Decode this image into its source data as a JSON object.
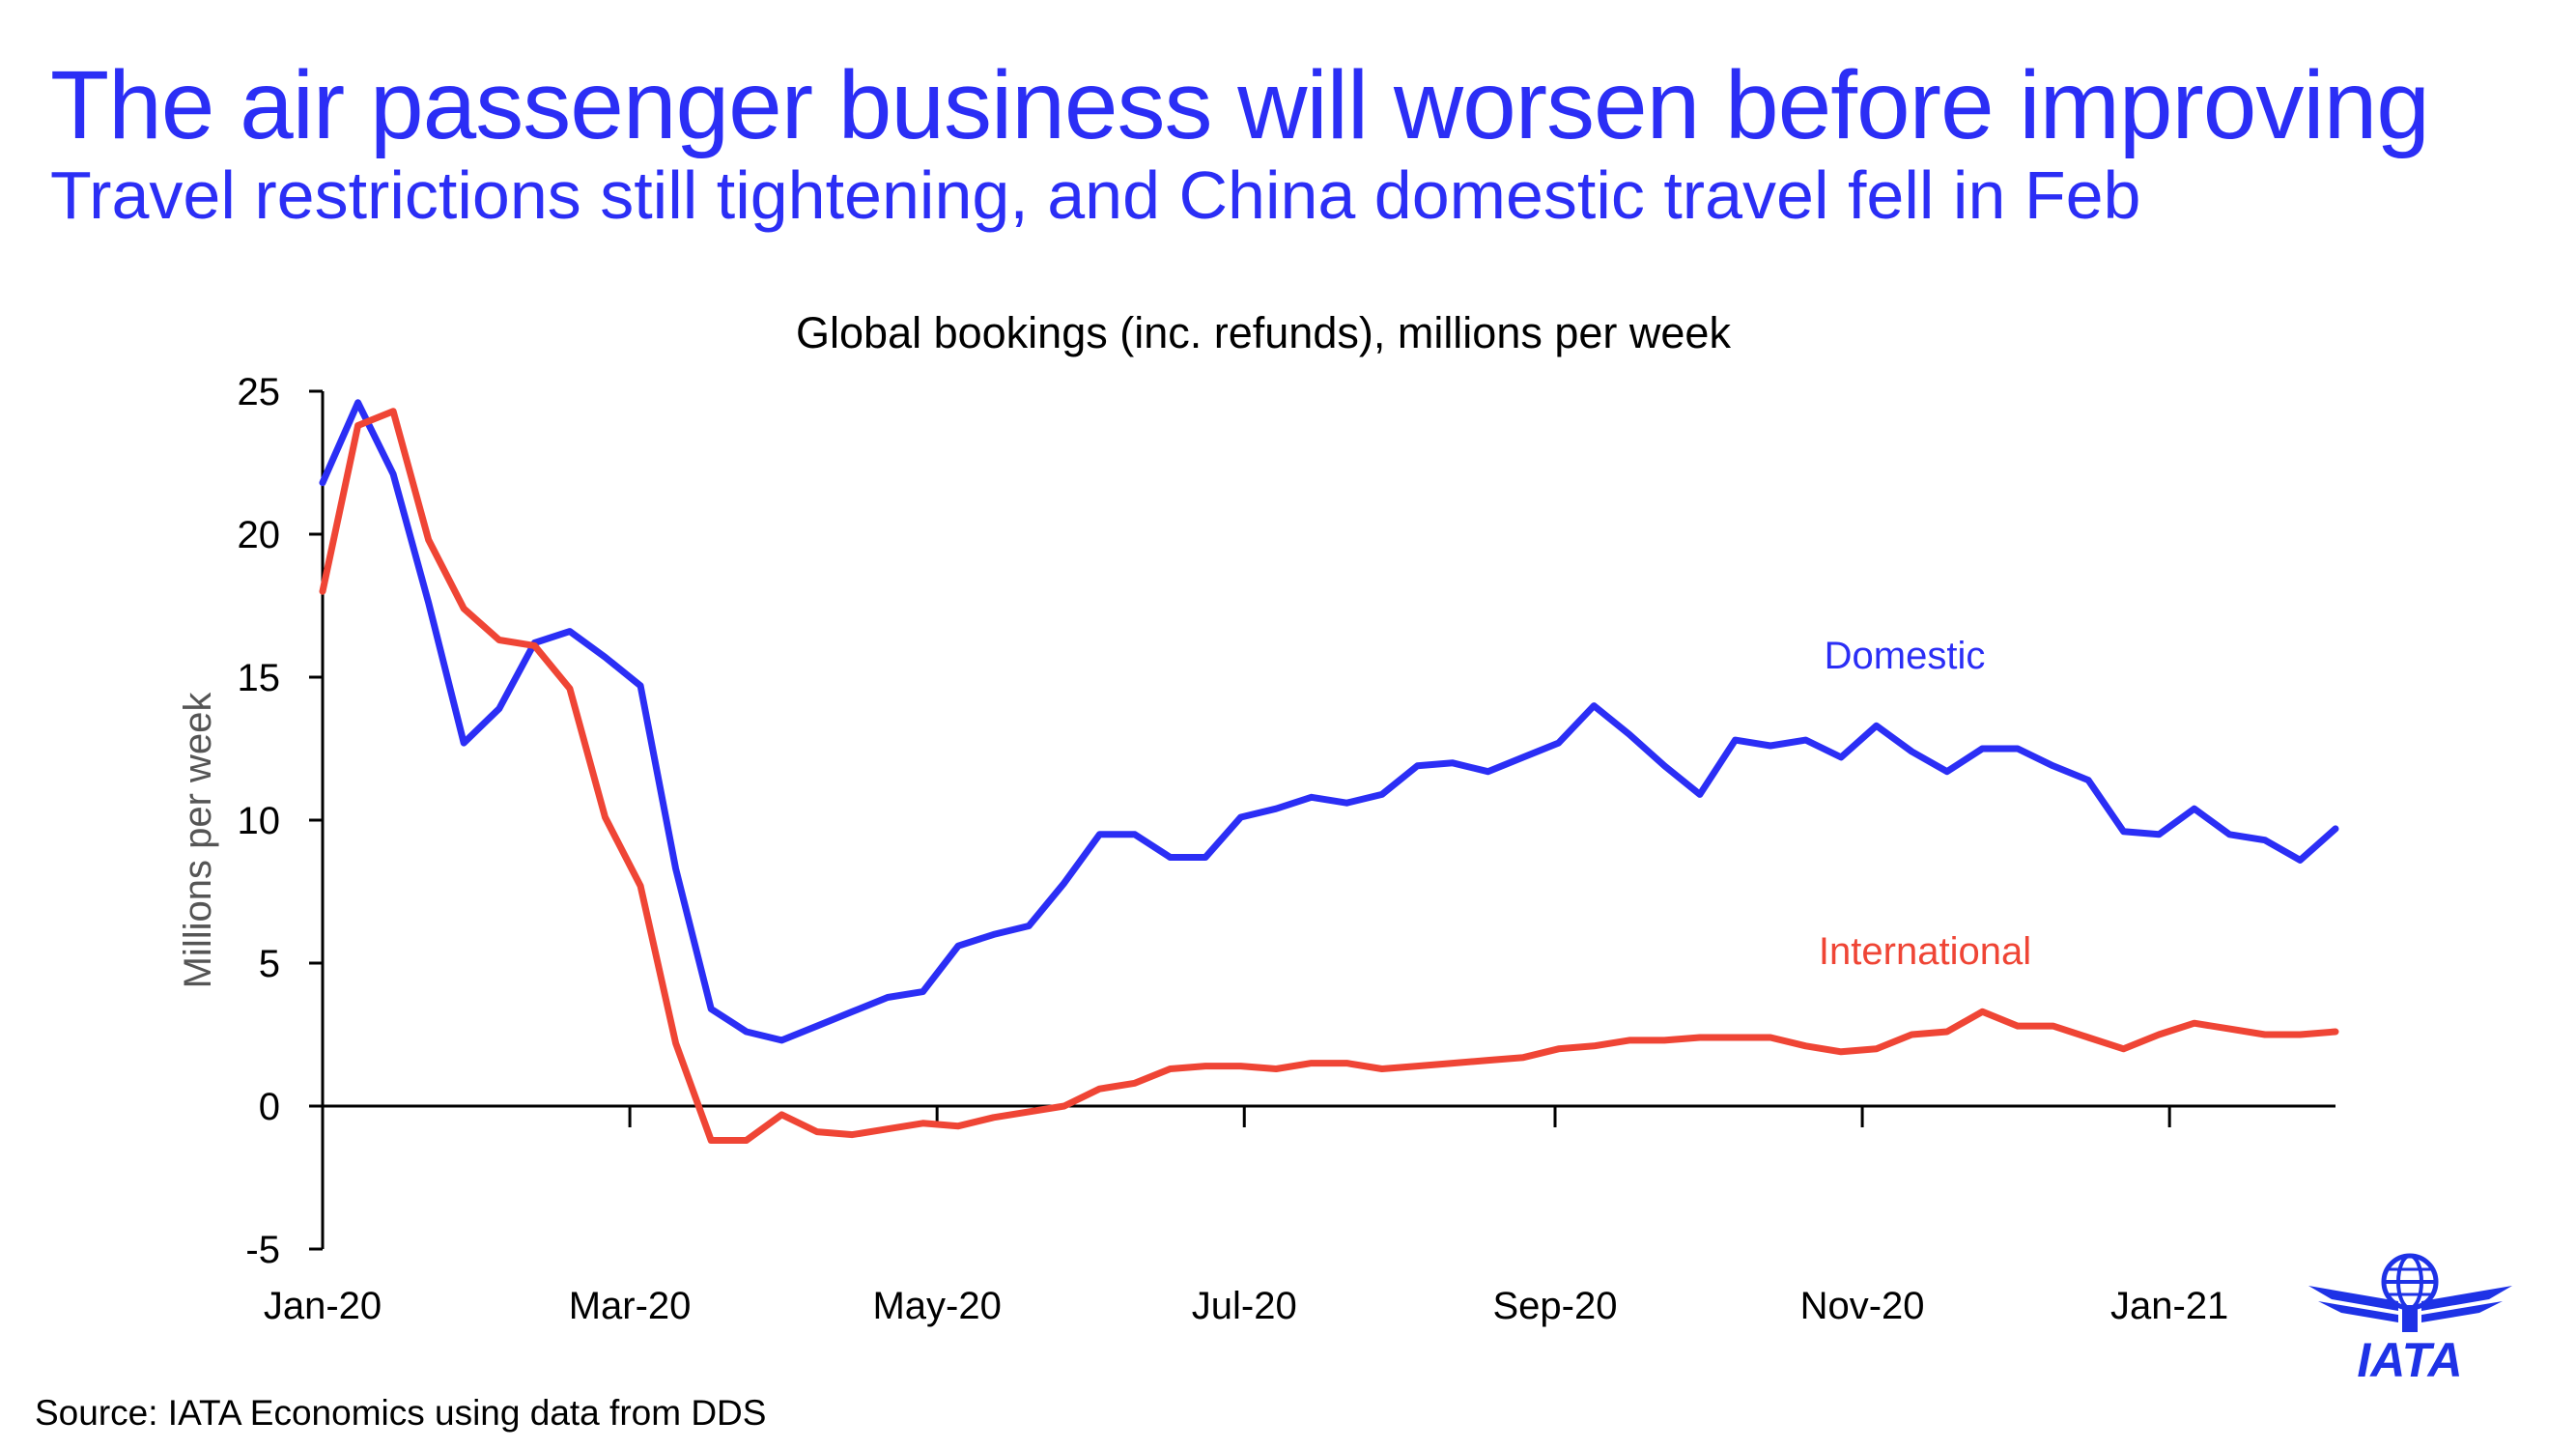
{
  "header": {
    "title": "The air passenger business will worsen before improving",
    "subtitle": "Travel restrictions still tightening, and China domestic travel fell in Feb"
  },
  "footer": {
    "source": "Source: IATA Economics using data from DDS"
  },
  "logo": {
    "text": "IATA"
  },
  "colors": {
    "title": "#2b2ef5",
    "domestic": "#2b2ef5",
    "international": "#ef4535",
    "axis": "#000000"
  },
  "chart_data": {
    "type": "line",
    "title": "Global bookings (inc. refunds), millions per week",
    "xlabel": "",
    "ylabel": "Millions per week",
    "ylim": [
      -5,
      25
    ],
    "yticks": [
      -5,
      0,
      5,
      10,
      15,
      20,
      25
    ],
    "xtick_labels": [
      {
        "label": "Jan-20",
        "week": 0
      },
      {
        "label": "Mar-20",
        "week": 8.7
      },
      {
        "label": "May-20",
        "week": 17.4
      },
      {
        "label": "Jul-20",
        "week": 26.1
      },
      {
        "label": "Sep-20",
        "week": 34.9
      },
      {
        "label": "Nov-20",
        "week": 43.6
      },
      {
        "label": "Jan-21",
        "week": 52.3
      }
    ],
    "series": [
      {
        "name": "Domestic",
        "values": [
          21.8,
          24.6,
          22.1,
          17.6,
          12.7,
          13.9,
          16.2,
          16.6,
          15.7,
          14.7,
          8.3,
          3.4,
          2.6,
          2.3,
          2.8,
          3.3,
          3.8,
          4.0,
          5.6,
          6.0,
          6.3,
          7.8,
          9.5,
          9.5,
          8.7,
          8.7,
          10.1,
          10.4,
          10.8,
          10.6,
          10.9,
          11.9,
          12.0,
          11.7,
          12.2,
          12.7,
          14.0,
          13.0,
          11.9,
          10.9,
          12.8,
          12.6,
          12.8,
          12.2,
          13.3,
          12.4,
          11.7,
          12.5,
          12.5,
          11.9,
          11.4,
          9.6,
          9.5,
          10.4,
          9.5,
          9.3,
          8.6,
          9.7
        ]
      },
      {
        "name": "International",
        "values": [
          18.0,
          23.8,
          24.3,
          19.8,
          17.4,
          16.3,
          16.1,
          14.6,
          10.1,
          7.7,
          2.2,
          -1.2,
          -1.2,
          -0.3,
          -0.9,
          -1.0,
          -0.8,
          -0.6,
          -0.7,
          -0.4,
          -0.2,
          0.0,
          0.6,
          0.8,
          1.3,
          1.4,
          1.4,
          1.3,
          1.5,
          1.5,
          1.3,
          1.4,
          1.5,
          1.6,
          1.7,
          2.0,
          2.1,
          2.3,
          2.3,
          2.4,
          2.4,
          2.4,
          2.1,
          1.9,
          2.0,
          2.5,
          2.6,
          3.3,
          2.8,
          2.8,
          2.4,
          2.0,
          2.5,
          2.9,
          2.7,
          2.5,
          2.5,
          2.6
        ]
      }
    ],
    "legend": "inline labels"
  }
}
